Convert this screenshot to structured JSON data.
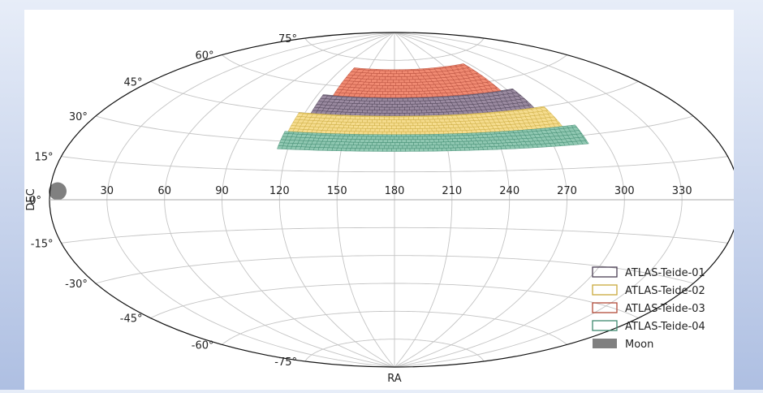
{
  "chart_data": {
    "type": "scatter",
    "projection": "aitoff",
    "xlabel": "RA",
    "ylabel": "DEC",
    "ra_tick_labels": [
      "30",
      "60",
      "90",
      "120",
      "150",
      "180",
      "210",
      "240",
      "270",
      "300",
      "330"
    ],
    "dec_tick_labels": [
      {
        "dec": 75,
        "label": "75°"
      },
      {
        "dec": 60,
        "label": "60°"
      },
      {
        "dec": 45,
        "label": "45°"
      },
      {
        "dec": 30,
        "label": "30°"
      },
      {
        "dec": 15,
        "label": "15°"
      },
      {
        "dec": 0,
        "label": "0°"
      },
      {
        "dec": -15,
        "label": "-15°"
      },
      {
        "dec": -30,
        "label": "-30°"
      },
      {
        "dec": -45,
        "label": "-45°"
      },
      {
        "dec": -60,
        "label": "-60°"
      },
      {
        "dec": -75,
        "label": "-75°"
      }
    ],
    "grid": true,
    "legend_position": "bottom-right",
    "series": [
      {
        "name": "ATLAS-Teide-01",
        "kind": "tile-band",
        "color": "#9a8aa0",
        "edge": "#4b3f54",
        "dec_range": [
          45,
          55
        ],
        "ra_range": [
          124,
          275
        ]
      },
      {
        "name": "ATLAS-Teide-02",
        "kind": "tile-band",
        "color": "#f5dc8e",
        "edge": "#c9a93c",
        "dec_range": [
          35,
          45
        ],
        "ra_range": [
          116,
          282
        ]
      },
      {
        "name": "ATLAS-Teide-03",
        "kind": "tile-band",
        "color": "#f08a72",
        "edge": "#b24a38",
        "dec_range": [
          55,
          70
        ],
        "ra_range": [
          132,
          265
        ]
      },
      {
        "name": "ATLAS-Teide-04",
        "kind": "tile-band",
        "color": "#8fc7b1",
        "edge": "#3f8a6f",
        "dec_range": [
          26,
          35
        ],
        "ra_range": [
          114,
          290
        ]
      },
      {
        "name": "Moon",
        "kind": "marker",
        "color": "#808080",
        "ra": 4,
        "dec": 3
      }
    ]
  }
}
